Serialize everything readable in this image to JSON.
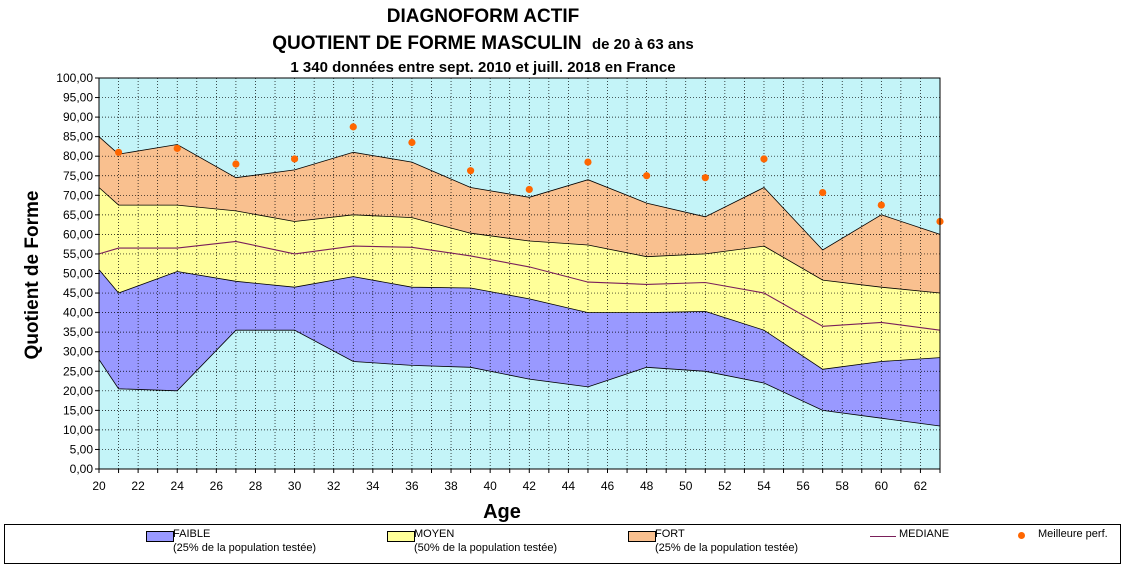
{
  "chart_data": {
    "type": "area",
    "title": "DIAGNOFORM ACTIF",
    "subtitle_bold": "QUOTIENT DE FORME MASCULIN",
    "subtitle_small": "de 20 à 63 ans",
    "subtitle2": "1 340 données entre sept. 2010 et juill. 2018 en France",
    "xlabel": "Age",
    "ylabel": "Quotient de Forme",
    "xlim": [
      20,
      63
    ],
    "ylim": [
      0,
      100
    ],
    "x_ticks": [
      "20",
      "22",
      "24",
      "26",
      "28",
      "30",
      "32",
      "34",
      "36",
      "38",
      "40",
      "42",
      "44",
      "46",
      "48",
      "50",
      "52",
      "54",
      "56",
      "58",
      "60",
      "62"
    ],
    "y_ticks": [
      "0,00",
      "5,00",
      "10,00",
      "15,00",
      "20,00",
      "25,00",
      "30,00",
      "35,00",
      "40,00",
      "45,00",
      "50,00",
      "55,00",
      "60,00",
      "65,00",
      "70,00",
      "75,00",
      "80,00",
      "85,00",
      "90,00",
      "95,00",
      "100,00"
    ],
    "grid": true,
    "background_color": "#c4f4f8",
    "x": [
      20,
      21,
      24,
      27,
      30,
      33,
      36,
      39,
      42,
      45,
      48,
      51,
      54,
      57,
      60,
      63
    ],
    "bands": [
      {
        "name": "FAIBLE",
        "color": "#9999ff",
        "lower": [
          28,
          20.5,
          20,
          35.5,
          35.5,
          27.5,
          26.5,
          26,
          23,
          21,
          26,
          25,
          22,
          15,
          13,
          11
        ],
        "upper": [
          51,
          45,
          50.5,
          48,
          46.5,
          49.2,
          46.5,
          46.3,
          43.5,
          40,
          40,
          40.3,
          35.5,
          25.5,
          27.5,
          28.5
        ]
      },
      {
        "name": "MOYEN",
        "color": "#ffff99",
        "lower": [
          51,
          45,
          50.5,
          48,
          46.5,
          49.2,
          46.5,
          46.3,
          43.5,
          40,
          40,
          40.3,
          35.5,
          25.5,
          27.5,
          28.5
        ],
        "upper": [
          72,
          67.5,
          67.5,
          66,
          63.3,
          65,
          64.3,
          60.3,
          58.3,
          57.3,
          54.3,
          55,
          57,
          48.3,
          46.5,
          45
        ]
      },
      {
        "name": "FORT",
        "color": "#f9c08f",
        "lower": [
          72,
          67.5,
          67.5,
          66,
          63.3,
          65,
          64.3,
          60.3,
          58.3,
          57.3,
          54.3,
          55,
          57,
          48.3,
          46.5,
          45
        ],
        "upper": [
          85,
          80.5,
          83,
          74.5,
          76.5,
          81,
          78.5,
          72,
          69.5,
          74,
          68,
          64.5,
          72,
          56,
          65,
          60
        ]
      }
    ],
    "median": {
      "name": "MEDIANE",
      "color": "#7a1f5a",
      "values": [
        55,
        56.5,
        56.5,
        58.2,
        55,
        57,
        56.7,
        54.5,
        51.7,
        47.8,
        47.2,
        47.7,
        45,
        36.5,
        37.5,
        35.5
      ]
    },
    "best": {
      "name": "Meilleure perf.",
      "color": "#ff6600",
      "x": [
        21,
        24,
        27,
        30,
        33,
        36,
        39,
        42,
        45,
        48,
        51,
        54,
        57,
        60,
        63
      ],
      "values": [
        81,
        82,
        78,
        79.3,
        87.5,
        83.5,
        76.3,
        71.5,
        78.5,
        75,
        74.5,
        79.3,
        70.7,
        67.5,
        63.3
      ]
    }
  },
  "legend": {
    "faible_label": "FAIBLE",
    "faible_sub": "(25% de la population testée)",
    "moyen_label": "MOYEN",
    "moyen_sub": "(50% de la population testée)",
    "fort_label": "FORT",
    "fort_sub": "(25% de la population testée)",
    "mediane_label": "MEDIANE",
    "best_label": "Meilleure perf."
  }
}
